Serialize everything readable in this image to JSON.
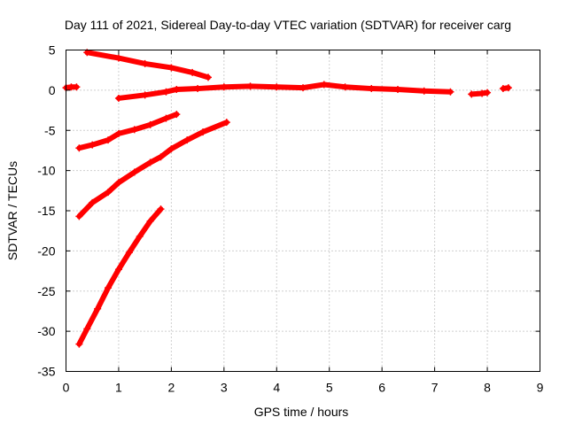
{
  "chart_data": {
    "type": "scatter",
    "title": "Day 111 of 2021, Sidereal Day-to-day VTEC variation (SDTVAR) for receiver carg",
    "xlabel": "GPS time / hours",
    "ylabel": "SDTVAR / TECUs",
    "xlim": [
      0,
      9
    ],
    "ylim": [
      -35,
      5
    ],
    "xticks": [
      0,
      1,
      2,
      3,
      4,
      5,
      6,
      7,
      8,
      9
    ],
    "yticks": [
      5,
      0,
      -5,
      -10,
      -15,
      -20,
      -25,
      -30,
      -35
    ],
    "grid": true,
    "marker_color": "#ff0000",
    "series": [
      {
        "points": [
          [
            0.0,
            0.3
          ],
          [
            0.1,
            0.4
          ],
          [
            0.2,
            0.4
          ]
        ]
      },
      {
        "points": [
          [
            0.4,
            4.7
          ],
          [
            1.0,
            4.0
          ],
          [
            1.5,
            3.3
          ],
          [
            2.0,
            2.8
          ],
          [
            2.4,
            2.2
          ],
          [
            2.7,
            1.6
          ]
        ]
      },
      {
        "points": [
          [
            1.0,
            -1.0
          ],
          [
            1.5,
            -0.6
          ],
          [
            1.9,
            -0.2
          ],
          [
            2.1,
            0.1
          ],
          [
            2.5,
            0.2
          ],
          [
            3.0,
            0.4
          ],
          [
            3.5,
            0.5
          ],
          [
            4.0,
            0.4
          ],
          [
            4.5,
            0.3
          ],
          [
            4.9,
            0.7
          ],
          [
            5.3,
            0.4
          ],
          [
            5.8,
            0.2
          ],
          [
            6.3,
            0.1
          ],
          [
            6.8,
            -0.1
          ],
          [
            7.3,
            -0.2
          ]
        ]
      },
      {
        "points": [
          [
            7.7,
            -0.5
          ],
          [
            7.9,
            -0.4
          ],
          [
            8.0,
            -0.3
          ]
        ]
      },
      {
        "points": [
          [
            8.3,
            0.2
          ],
          [
            8.4,
            0.3
          ]
        ]
      },
      {
        "points": [
          [
            0.25,
            -7.2
          ],
          [
            0.5,
            -6.8
          ],
          [
            0.8,
            -6.2
          ],
          [
            1.0,
            -5.4
          ],
          [
            1.3,
            -4.9
          ],
          [
            1.6,
            -4.3
          ],
          [
            1.9,
            -3.5
          ],
          [
            2.1,
            -3.0
          ]
        ]
      },
      {
        "points": [
          [
            0.25,
            -15.7
          ],
          [
            0.5,
            -14.0
          ],
          [
            0.8,
            -12.7
          ],
          [
            1.0,
            -11.5
          ],
          [
            1.3,
            -10.2
          ],
          [
            1.6,
            -9.0
          ],
          [
            1.8,
            -8.3
          ],
          [
            2.0,
            -7.3
          ],
          [
            2.3,
            -6.2
          ],
          [
            2.6,
            -5.2
          ],
          [
            3.05,
            -4.0
          ]
        ]
      },
      {
        "points": [
          [
            0.25,
            -31.6
          ],
          [
            0.4,
            -29.7
          ],
          [
            0.6,
            -27.2
          ],
          [
            0.8,
            -24.6
          ],
          [
            1.0,
            -22.3
          ],
          [
            1.2,
            -20.2
          ],
          [
            1.4,
            -18.2
          ],
          [
            1.6,
            -16.3
          ],
          [
            1.8,
            -14.8
          ]
        ]
      }
    ]
  }
}
